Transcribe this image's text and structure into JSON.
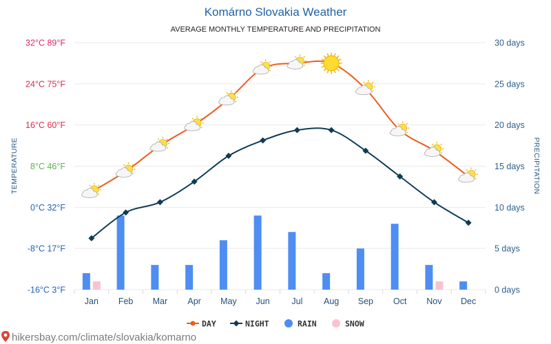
{
  "chart_data": {
    "type": "line",
    "title": "Komárno Slovakia Weather",
    "subtitle": "AVERAGE MONTHLY TEMPERATURE AND PRECIPITATION",
    "categories": [
      "Jan",
      "Feb",
      "Mar",
      "Apr",
      "May",
      "Jun",
      "Jul",
      "Aug",
      "Sep",
      "Oct",
      "Nov",
      "Dec"
    ],
    "y_left": {
      "label": "TEMPERATURE",
      "range": [
        -16,
        32
      ],
      "ticks": [
        {
          "value": 32,
          "label": "32°C 89°F",
          "color": "#e3256b"
        },
        {
          "value": 24,
          "label": "24°C 75°F",
          "color": "#dd2c4e"
        },
        {
          "value": 16,
          "label": "16°C 60°F",
          "color": "#dd2c4e"
        },
        {
          "value": 8,
          "label": "8°C 46°F",
          "color": "#57b44a"
        },
        {
          "value": 0,
          "label": "0°C 32°F",
          "color": "#2461b8"
        },
        {
          "value": -8,
          "label": "-8°C 17°F",
          "color": "#2461b8"
        },
        {
          "value": -16,
          "label": "-16°C 3°F",
          "color": "#2461b8"
        }
      ]
    },
    "y_right": {
      "label": "PRECIPITATION",
      "range": [
        0,
        30
      ],
      "ticks": [
        {
          "value": 30,
          "label": "30 days"
        },
        {
          "value": 25,
          "label": "25 days"
        },
        {
          "value": 20,
          "label": "20 days"
        },
        {
          "value": 15,
          "label": "15 days"
        },
        {
          "value": 10,
          "label": "10 days"
        },
        {
          "value": 5,
          "label": "5 days"
        },
        {
          "value": 0,
          "label": "0 days"
        }
      ]
    },
    "series": [
      {
        "name": "DAY",
        "type": "line",
        "axis": "left",
        "color": "#ef5a1c",
        "values": [
          3,
          7,
          12,
          16,
          21,
          27,
          28,
          28,
          23,
          15,
          11,
          6
        ],
        "icons": [
          "partly-cloudy-icon",
          "partly-cloudy-icon",
          "partly-cloudy-icon",
          "partly-cloudy-icon",
          "partly-cloudy-icon",
          "partly-cloudy-icon",
          "partly-cloudy-icon",
          "sun-icon",
          "partly-cloudy-icon",
          "partly-cloudy-icon",
          "partly-cloudy-icon",
          "partly-cloudy-icon"
        ]
      },
      {
        "name": "NIGHT",
        "type": "line",
        "axis": "left",
        "color": "#0f3b55",
        "values": [
          -6,
          -1,
          1,
          5,
          10,
          13,
          15,
          15,
          11,
          6,
          1,
          -3
        ]
      },
      {
        "name": "RAIN",
        "type": "bar",
        "axis": "right",
        "color": "#4e8ef2",
        "values": [
          2,
          9,
          3,
          3,
          6,
          9,
          7,
          2,
          5,
          8,
          3,
          1
        ]
      },
      {
        "name": "SNOW",
        "type": "bar",
        "axis": "right",
        "color": "#f8c3cf",
        "values": [
          1,
          0,
          0,
          0,
          0,
          0,
          0,
          0,
          0,
          0,
          1,
          0
        ]
      }
    ],
    "grid": true,
    "legend_position": "bottom"
  },
  "footer": {
    "icon": "location-pin-icon",
    "url": "hikersbay.com/climate/slovakia/komarno"
  }
}
